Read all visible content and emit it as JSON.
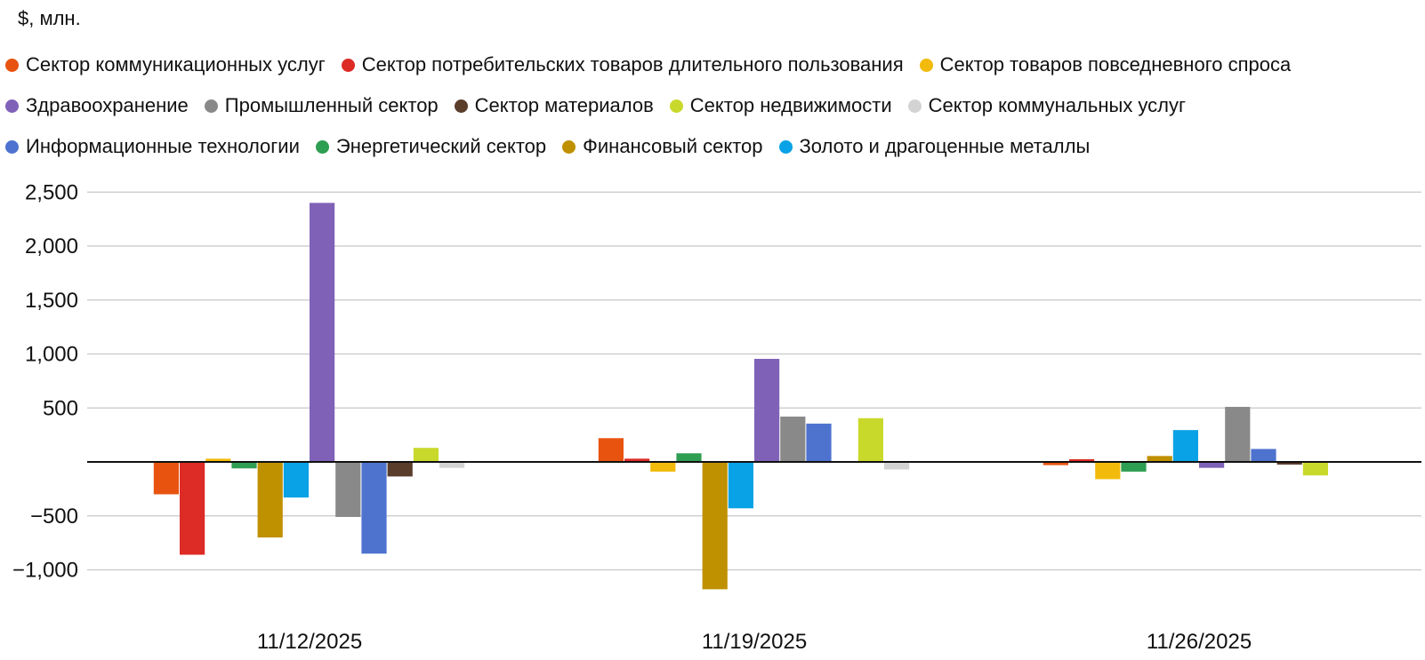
{
  "chart_data": {
    "type": "bar",
    "unit_label": "$, млн.",
    "title": "",
    "xlabel": "",
    "ylabel": "",
    "categories": [
      "11/12/2025",
      "11/19/2025",
      "11/26/2025"
    ],
    "yticks": [
      -1000,
      -500,
      500,
      1000,
      1500,
      2000,
      2500
    ],
    "ytick_labels": [
      "−1,000",
      "−500",
      "500",
      "1,000",
      "1,500",
      "2,000",
      "2,500"
    ],
    "ylim": [
      -1200,
      2500
    ],
    "grid": true,
    "legend_position": "top",
    "series": [
      {
        "name": "Сектор коммуникационных услуг",
        "color": "#E8540F",
        "values": [
          -300,
          220,
          -30
        ]
      },
      {
        "name": "Сектор потребительских товаров длительного пользования",
        "color": "#DD2B26",
        "values": [
          -860,
          30,
          25
        ]
      },
      {
        "name": "Сектор товаров повседневного спроса",
        "color": "#F2BB0C",
        "values": [
          30,
          -90,
          -160
        ]
      },
      {
        "name": "Энергетический сектор",
        "color": "#2E9E52",
        "values": [
          -60,
          80,
          -90
        ]
      },
      {
        "name": "Финансовый сектор",
        "color": "#BF9000",
        "values": [
          -700,
          -1180,
          55
        ]
      },
      {
        "name": "Золото и драгоценные металлы",
        "color": "#0AA2E6",
        "values": [
          -330,
          -430,
          295
        ]
      },
      {
        "name": "Здравоохранение",
        "color": "#7F62B8",
        "values": [
          2400,
          955,
          -55
        ]
      },
      {
        "name": "Промышленный сектор",
        "color": "#898989",
        "values": [
          -510,
          420,
          510
        ]
      },
      {
        "name": "Информационные технологии",
        "color": "#4E73CF",
        "values": [
          -850,
          355,
          120
        ]
      },
      {
        "name": "Сектор материалов",
        "color": "#5A3D2B",
        "values": [
          -135,
          0,
          -25
        ]
      },
      {
        "name": "Сектор недвижимости",
        "color": "#C9D92C",
        "values": [
          130,
          405,
          -125
        ]
      },
      {
        "name": "Сектор коммунальных услуг",
        "color": "#D3D3D3",
        "values": [
          -55,
          -70,
          0
        ]
      }
    ],
    "legend_rows": [
      [
        {
          "name": "Сектор коммуникационных услуг",
          "color": "#E8540F"
        },
        {
          "name": "Сектор потребительских товаров длительного пользования",
          "color": "#DD2B26"
        },
        {
          "name": "Сектор товаров повседневного спроса",
          "color": "#F2BB0C"
        }
      ],
      [
        {
          "name": "Здравоохранение",
          "color": "#7F62B8"
        },
        {
          "name": "Промышленный сектор",
          "color": "#898989"
        },
        {
          "name": "Сектор материалов",
          "color": "#5A3D2B"
        },
        {
          "name": "Сектор недвижимости",
          "color": "#C9D92C"
        },
        {
          "name": "Сектор коммунальных услуг",
          "color": "#D3D3D3"
        }
      ],
      [
        {
          "name": "Информационные технологии",
          "color": "#4E73CF"
        },
        {
          "name": "Энергетический сектор",
          "color": "#2E9E52"
        },
        {
          "name": "Финансовый сектор",
          "color": "#BF9000"
        },
        {
          "name": "Золото и драгоценные металлы",
          "color": "#0AA2E6"
        }
      ]
    ]
  }
}
